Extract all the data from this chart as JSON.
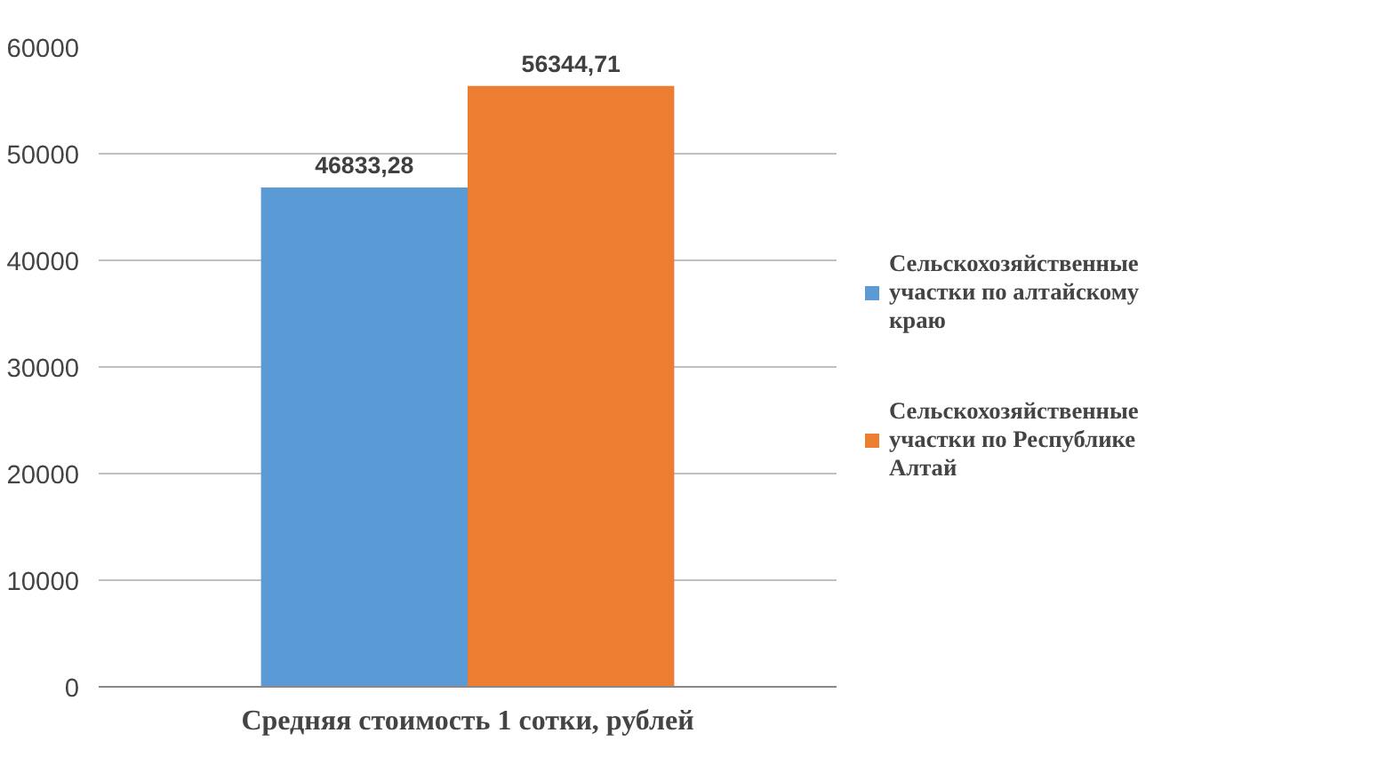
{
  "chart_data": {
    "type": "bar",
    "categories": [
      "Средняя стоимость 1 сотки, рублей"
    ],
    "series": [
      {
        "name": "Сельскохозяйственные участки по алтайскому краю",
        "color": "#5b9bd5",
        "values": [
          46833.28
        ],
        "value_labels": [
          "46833,28"
        ]
      },
      {
        "name": "Сельскохозяйственные участки по Республике Алтай",
        "color": "#ed7d31",
        "values": [
          56344.71
        ],
        "value_labels": [
          "56344,71"
        ]
      }
    ],
    "ylim": [
      0,
      60000
    ],
    "yticks": [
      0,
      10000,
      20000,
      30000,
      40000,
      50000,
      60000
    ],
    "grid": "y",
    "legend": "right"
  }
}
